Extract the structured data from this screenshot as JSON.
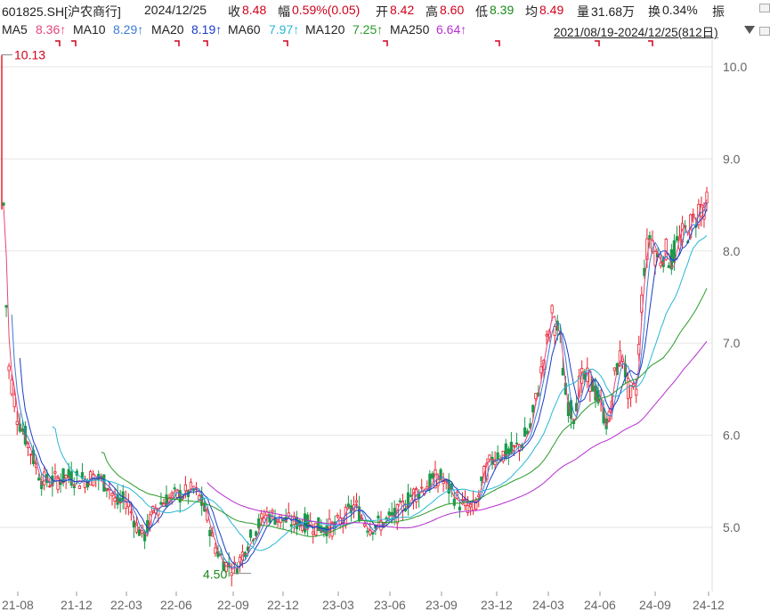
{
  "header": {
    "code": "601825.SH[沪农商行]",
    "date": "2024/12/25",
    "close_label": "收",
    "close": "8.48",
    "change_label": "幅",
    "change": "0.59%(0.05)",
    "open_label": "开",
    "open": "8.42",
    "high_label": "高",
    "high": "8.60",
    "low_label": "低",
    "low": "8.39",
    "avg_label": "均",
    "avg": "8.49",
    "vol_label": "量",
    "vol": "31.68万",
    "turn_label": "换",
    "turn": "0.34%",
    "amp_label": "振"
  },
  "ma": [
    {
      "label": "MA5",
      "value": "8.36↑",
      "color": "#e8457a"
    },
    {
      "label": "MA10",
      "value": "8.29↑",
      "color": "#3a7bd5"
    },
    {
      "label": "MA20",
      "value": "8.19↑",
      "color": "#1a3cc8"
    },
    {
      "label": "MA60",
      "value": "7.97↑",
      "color": "#29b6d6"
    },
    {
      "label": "MA120",
      "value": "7.25↑",
      "color": "#2a9a2a"
    },
    {
      "label": "MA250",
      "value": "6.64↑",
      "color": "#b52fd0"
    }
  ],
  "range": "2021/08/19-2024/12/25(812日)",
  "colors": {
    "up": "#e8202a",
    "down": "#1a9a4a",
    "grid": "#e6e6e6",
    "axis_text": "#666666"
  },
  "chart_data": {
    "type": "candlestick",
    "ylim": [
      4.4,
      10.3
    ],
    "yticks": [
      "10.0",
      "9.0",
      "8.0",
      "7.0",
      "6.0",
      "5.0"
    ],
    "x_labels": [
      "21-08",
      "21-12",
      "22-03",
      "22-06",
      "22-09",
      "22-12",
      "23-03",
      "23-06",
      "23-09",
      "23-12",
      "24-03",
      "24-06",
      "24-09",
      "24-12"
    ],
    "annotations": [
      {
        "text": "10.13",
        "value": 10.13
      },
      {
        "text": "4.50",
        "value": 4.5
      }
    ],
    "close_path": [
      [
        0,
        8.5
      ],
      [
        0.006,
        6.8
      ],
      [
        0.02,
        6.2
      ],
      [
        0.04,
        5.8
      ],
      [
        0.055,
        5.5
      ],
      [
        0.07,
        5.5
      ],
      [
        0.09,
        5.55
      ],
      [
        0.11,
        5.52
      ],
      [
        0.13,
        5.55
      ],
      [
        0.15,
        5.45
      ],
      [
        0.16,
        5.25
      ],
      [
        0.175,
        5.3
      ],
      [
        0.19,
        5.0
      ],
      [
        0.2,
        4.9
      ],
      [
        0.215,
        5.2
      ],
      [
        0.23,
        5.3
      ],
      [
        0.25,
        5.35
      ],
      [
        0.27,
        5.4
      ],
      [
        0.28,
        5.3
      ],
      [
        0.29,
        5.1
      ],
      [
        0.3,
        4.8
      ],
      [
        0.315,
        4.6
      ],
      [
        0.33,
        4.55
      ],
      [
        0.345,
        4.8
      ],
      [
        0.36,
        5.0
      ],
      [
        0.375,
        5.15
      ],
      [
        0.39,
        5.1
      ],
      [
        0.41,
        5.05
      ],
      [
        0.43,
        5.05
      ],
      [
        0.45,
        5.0
      ],
      [
        0.47,
        5.0
      ],
      [
        0.49,
        5.15
      ],
      [
        0.5,
        5.25
      ],
      [
        0.51,
        5.1
      ],
      [
        0.52,
        5.0
      ],
      [
        0.54,
        5.05
      ],
      [
        0.56,
        5.15
      ],
      [
        0.58,
        5.35
      ],
      [
        0.6,
        5.45
      ],
      [
        0.62,
        5.55
      ],
      [
        0.635,
        5.4
      ],
      [
        0.65,
        5.25
      ],
      [
        0.67,
        5.2
      ],
      [
        0.685,
        5.6
      ],
      [
        0.7,
        5.8
      ],
      [
        0.72,
        5.8
      ],
      [
        0.735,
        5.9
      ],
      [
        0.75,
        6.1
      ],
      [
        0.76,
        6.5
      ],
      [
        0.77,
        6.9
      ],
      [
        0.78,
        7.3
      ],
      [
        0.79,
        7.1
      ],
      [
        0.8,
        6.4
      ],
      [
        0.81,
        6.2
      ],
      [
        0.82,
        6.6
      ],
      [
        0.835,
        6.6
      ],
      [
        0.85,
        6.3
      ],
      [
        0.86,
        6.1
      ],
      [
        0.87,
        6.7
      ],
      [
        0.88,
        6.9
      ],
      [
        0.89,
        6.4
      ],
      [
        0.9,
        6.5
      ],
      [
        0.91,
        7.8
      ],
      [
        0.92,
        8.2
      ],
      [
        0.93,
        7.9
      ],
      [
        0.94,
        8.0
      ],
      [
        0.95,
        7.9
      ],
      [
        0.96,
        8.1
      ],
      [
        0.97,
        8.2
      ],
      [
        0.98,
        8.3
      ],
      [
        0.99,
        8.48
      ]
    ]
  }
}
